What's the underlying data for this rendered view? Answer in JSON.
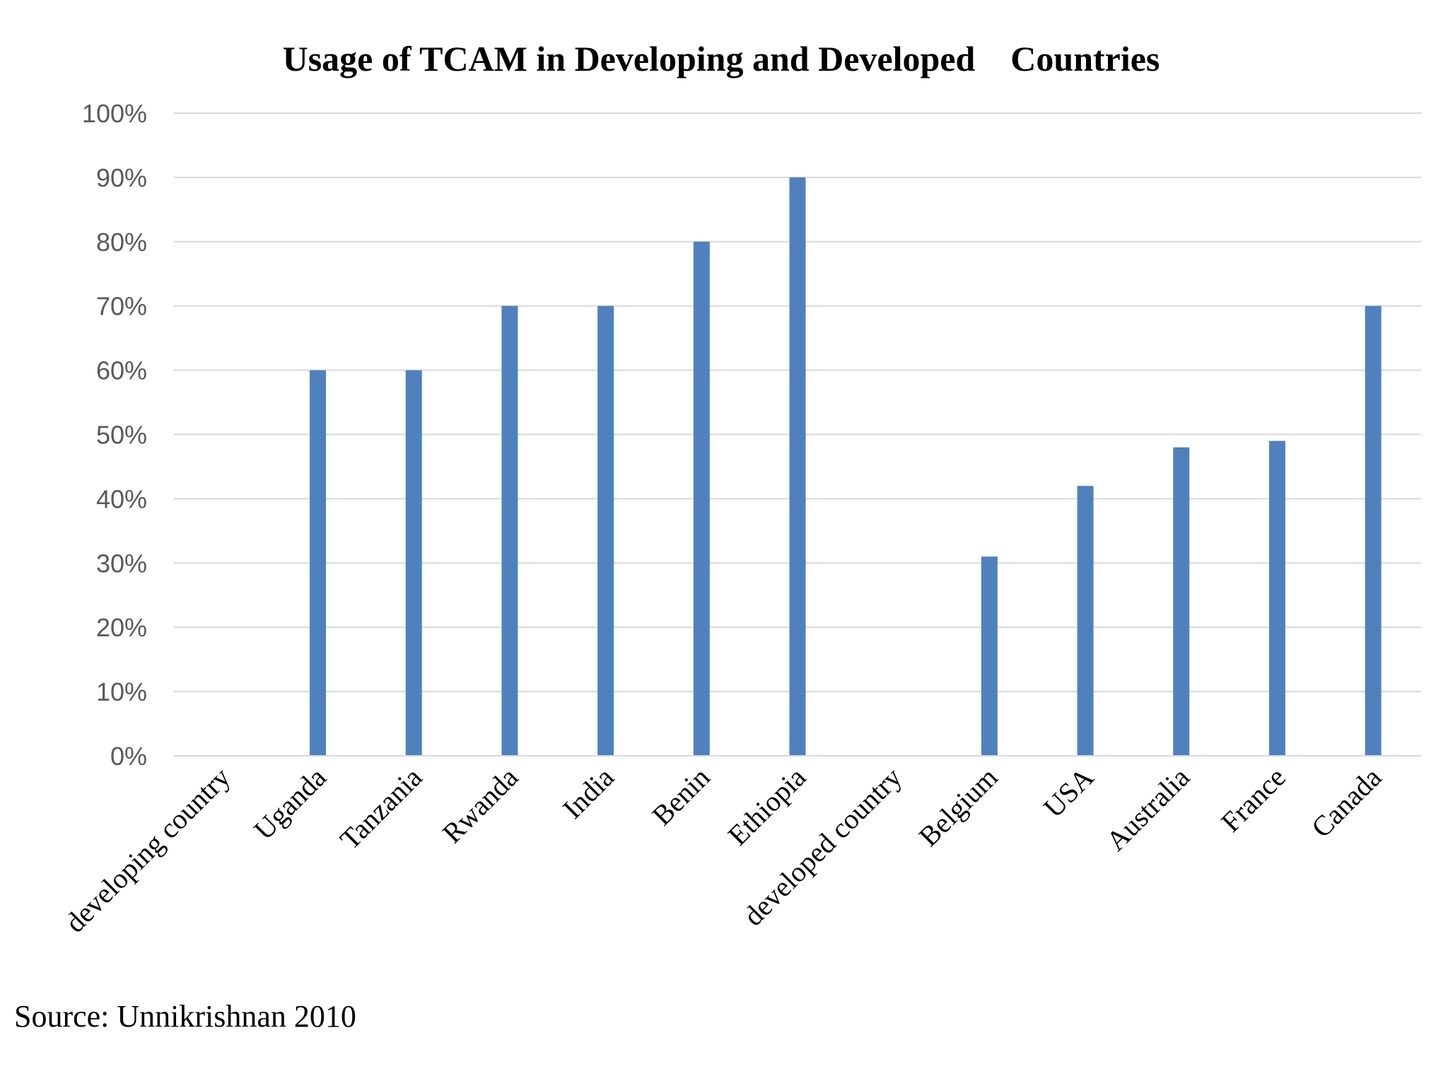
{
  "chart_data": {
    "type": "bar",
    "title": "Usage of TCAM in Developing and Developed    Countries",
    "xlabel": "",
    "ylabel": "",
    "categories": [
      "developing country",
      "Uganda",
      "Tanzania",
      "Rwanda",
      "India",
      "Benin",
      "Ethiopia",
      "developed country",
      "Belgium",
      "USA",
      "Australia",
      "France",
      "Canada"
    ],
    "values": [
      null,
      60,
      60,
      70,
      70,
      80,
      90,
      null,
      31,
      42,
      48,
      49,
      70
    ],
    "ylim": [
      0,
      100
    ],
    "yticks": [
      0,
      10,
      20,
      30,
      40,
      50,
      60,
      70,
      80,
      90,
      100
    ],
    "ytick_suffix": "%",
    "bar_color": "#4f81bd",
    "grid": true,
    "legend": "none"
  },
  "source": "Source: Unnikrishnan 2010"
}
